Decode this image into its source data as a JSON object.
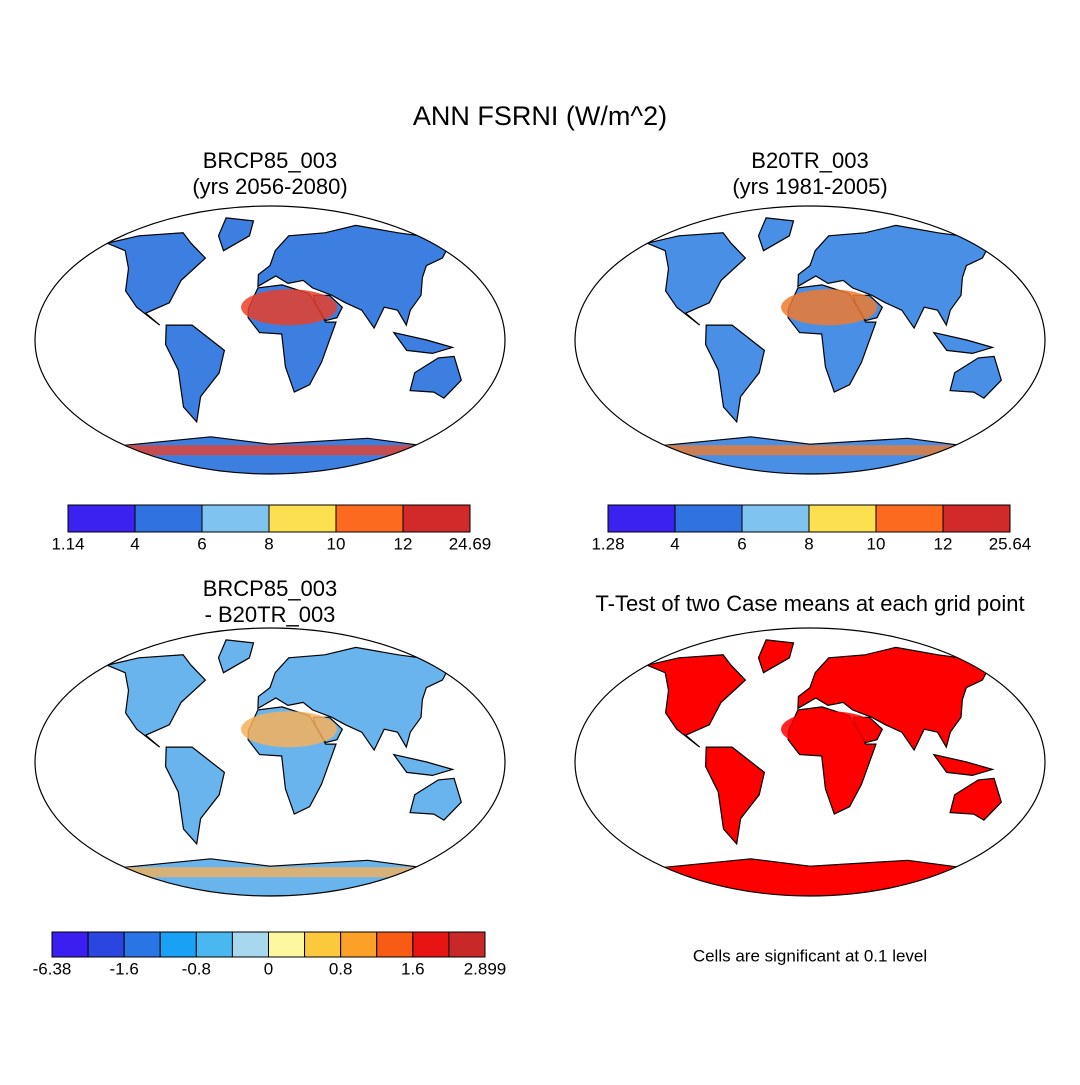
{
  "title": "ANN FSRNI (W/m^2)",
  "panels": [
    {
      "title": [
        "BRCP85_003",
        "(yrs 2056-2080)"
      ],
      "colorbar": {
        "colors": [
          "#3b22f0",
          "#2f72e0",
          "#7fc3f0",
          "#fde050",
          "#fc6a1f",
          "#d22a2a"
        ],
        "labels": [
          "1.14",
          "4",
          "6",
          "8",
          "10",
          "12",
          "24.69"
        ]
      }
    },
    {
      "title": [
        "B20TR_003",
        "(yrs 1981-2005)"
      ],
      "colorbar": {
        "colors": [
          "#3b22f0",
          "#2f72e0",
          "#7fc3f0",
          "#fde050",
          "#fc6a1f",
          "#d22a2a"
        ],
        "labels": [
          "1.28",
          "4",
          "6",
          "8",
          "10",
          "12",
          "25.64"
        ]
      }
    },
    {
      "title": [
        "BRCP85_003",
        "- B20TR_003"
      ],
      "colorbar": {
        "colors": [
          "#3a1ff0",
          "#2a45e0",
          "#2a75e5",
          "#1aa0f5",
          "#4ab8f0",
          "#a8d8f0",
          "#fdf7a0",
          "#fcc83c",
          "#fca028",
          "#f85c14",
          "#e81414",
          "#c82828"
        ],
        "labels": [
          "-6.38",
          "-1.6",
          "-0.8",
          "0",
          "0.8",
          "1.6",
          "2.899"
        ]
      }
    },
    {
      "title": [
        "T-Test of two Case means at each grid point"
      ],
      "note": "Cells are significant at 0.1 level"
    }
  ]
}
